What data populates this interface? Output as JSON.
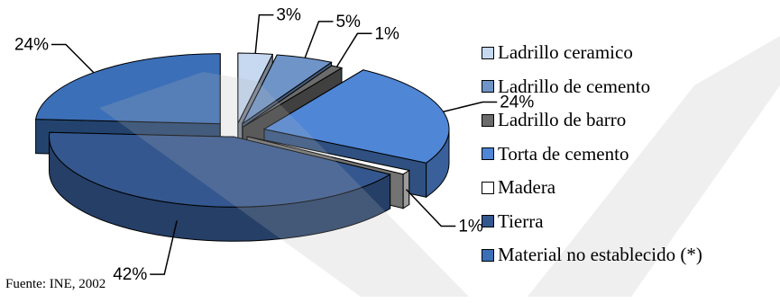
{
  "chart_data": {
    "type": "pie",
    "style": "3d-exploded",
    "categories": [
      "Ladrillo ceramico",
      "Ladrillo de cemento",
      "Ladrillo de barro",
      "Torta de cemento",
      "Madera",
      "Tierra",
      "Material no establecido (*)"
    ],
    "values": [
      3,
      5,
      1,
      24,
      1,
      42,
      24
    ],
    "value_labels": [
      "3%",
      "5%",
      "1%",
      "24%",
      "1%",
      "42%",
      "24%"
    ],
    "colors": [
      "#c6d9f1",
      "#6f94c8",
      "#6b6b6b",
      "#4f86d6",
      "#ffffff",
      "#34578f",
      "#3b6fb8"
    ],
    "legend_position": "right"
  },
  "source": "Fuente: INE, 2002"
}
